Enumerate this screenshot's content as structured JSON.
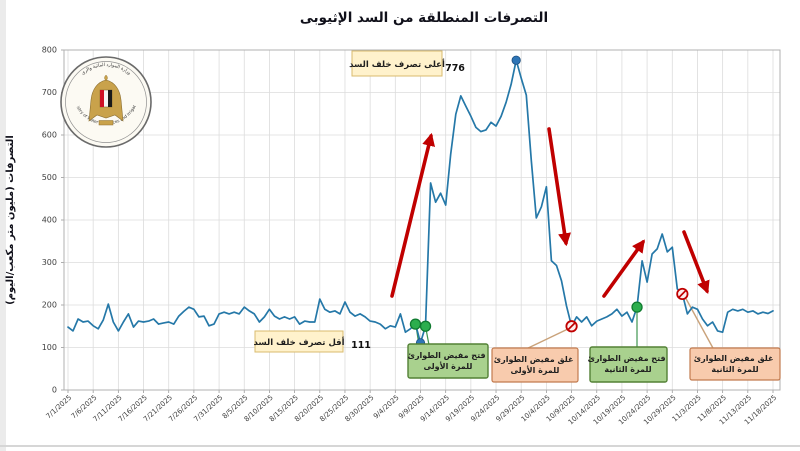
{
  "title": "التصرفات المنطلقة من السد الإثيوبى",
  "y_axis_title": "التصرفات (مليون متر مكعب/اليوم)",
  "logo": {
    "arabic": "وزارة الموارد المائية والري",
    "english": "Ministry of Water Resources and Irrigation"
  },
  "annotations": {
    "max_label": "أعلى تصرف خلف السد",
    "max_value": "776",
    "min_label": "أقل تصرف خلف السد",
    "min_value": "111",
    "boxes": {
      "open1": {
        "line1": "فتح مفيض الطوارئ",
        "line2": "للمرة الأولى"
      },
      "close1": {
        "line1": "غلق مفيض الطوارئ",
        "line2": "للمرة الأولى"
      },
      "open2": {
        "line1": "فتح مفيض الطوارئ",
        "line2": "للمرة الثانية"
      },
      "close2": {
        "line1": "غلق مفيض الطوارئ",
        "line2": "للمرة الثانية"
      }
    }
  },
  "colors": {
    "line": "#2578A8",
    "arrow_red": "#C00000",
    "marker_green": "#2CAE4E",
    "marker_blue": "#2E75B6",
    "box_yellow": "#FFF2CC",
    "box_green": "#A9D18E",
    "box_peach": "#F8CBAD"
  },
  "chart_data": {
    "type": "line",
    "title": "التصرفات المنطلقة من السد الإثيوبى",
    "ylabel": "التصرفات (مليون متر مكعب/اليوم)",
    "start_date": "7/1/2025",
    "end_date": "11/18/2025",
    "frequency": "daily",
    "ylim": [
      0,
      800
    ],
    "grid": true,
    "y_ticks": [
      0,
      100,
      200,
      300,
      400,
      500,
      600,
      700,
      800
    ],
    "x_tick_labels": [
      "7/1/2025",
      "7/6/2025",
      "7/11/2025",
      "7/16/2025",
      "7/21/2025",
      "7/26/2025",
      "7/31/2025",
      "8/5/2025",
      "8/10/2025",
      "8/15/2025",
      "8/20/2025",
      "8/25/2025",
      "8/30/2025",
      "9/4/2025",
      "9/9/2025",
      "9/14/2025",
      "9/19/2025",
      "9/24/2025",
      "9/29/2025",
      "10/4/2025",
      "10/9/2025",
      "10/14/2025",
      "10/19/2025",
      "10/24/2025",
      "10/29/2025",
      "11/3/2025",
      "11/8/2025",
      "11/13/2025",
      "11/18/2025"
    ],
    "values": [
      148,
      139,
      167,
      160,
      162,
      151,
      144,
      165,
      202,
      160,
      139,
      160,
      179,
      148,
      162,
      160,
      162,
      167,
      155,
      158,
      160,
      155,
      174,
      185,
      195,
      190,
      172,
      174,
      151,
      155,
      179,
      183,
      179,
      183,
      179,
      195,
      186,
      179,
      160,
      172,
      190,
      174,
      167,
      172,
      167,
      172,
      155,
      162,
      160,
      160,
      214,
      190,
      183,
      186,
      179,
      207,
      183,
      174,
      179,
      172,
      162,
      160,
      155,
      144,
      151,
      148,
      179,
      136,
      144,
      155,
      111,
      150,
      487,
      442,
      463,
      435,
      555,
      649,
      692,
      668,
      644,
      618,
      608,
      612,
      630,
      621,
      644,
      677,
      719,
      776,
      734,
      694,
      540,
      405,
      431,
      478,
      304,
      293,
      257,
      198,
      150,
      172,
      160,
      172,
      151,
      162,
      167,
      172,
      179,
      190,
      174,
      183,
      160,
      195,
      304,
      254,
      320,
      332,
      367,
      325,
      336,
      238,
      226,
      179,
      195,
      190,
      167,
      151,
      160,
      139,
      136,
      183,
      190,
      186,
      190,
      183,
      186,
      179,
      183,
      180,
      186
    ],
    "max_point": {
      "date": "9/28/2025",
      "value": 776
    },
    "min_point": {
      "date": "9/9/2025",
      "value": 111
    },
    "markers": [
      {
        "date": "9/9/2025",
        "day": 70,
        "value": 111,
        "type": "data-point"
      },
      {
        "date": "9/28/2025",
        "day": 89,
        "value": 776,
        "type": "data-point"
      },
      {
        "date": "9/8/2025",
        "day": 69,
        "value": 155,
        "type": "spillway-open"
      },
      {
        "date": "9/10/2025",
        "day": 71,
        "value": 150,
        "type": "spillway-open"
      },
      {
        "date": "10/9/2025",
        "day": 100,
        "value": 150,
        "type": "spillway-close"
      },
      {
        "date": "10/22/2025",
        "day": 113,
        "value": 195,
        "type": "spillway-open"
      },
      {
        "date": "10/31/2025",
        "day": 122,
        "value": 226,
        "type": "spillway-close"
      }
    ]
  }
}
